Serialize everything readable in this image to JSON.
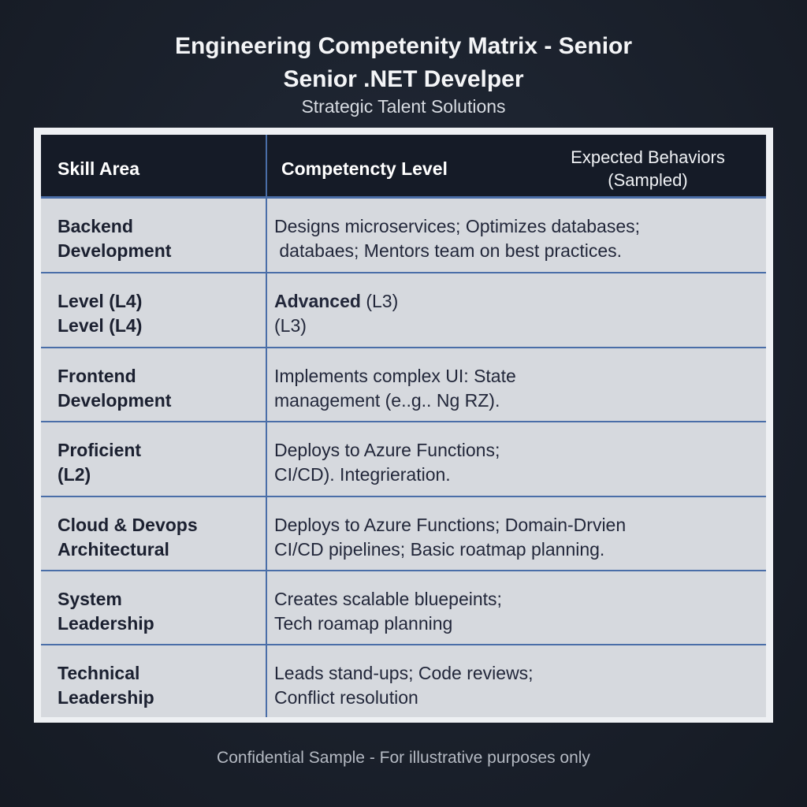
{
  "title_line1": "Engineering Competenity Matrix - Senior",
  "title_line2": "Senior .NET Develper",
  "subtitle": "Strategic Talent Solutions",
  "table": {
    "headers": [
      "Skill Area",
      "Competencty Level",
      "Expected Behaviors",
      "(Sampled)"
    ],
    "rows": [
      {
        "skill": [
          "Backend",
          "Development"
        ],
        "bold": "",
        "text": [
          "Designs microservices; Optimizes databases;",
          " databaes; Mentors team on best practices."
        ]
      },
      {
        "skill": [
          "Level (L4)",
          "Level (L4)"
        ],
        "bold": "Advanced",
        "text": [
          " (L3)",
          "(L3)"
        ]
      },
      {
        "skill": [
          "Frontend",
          "Development"
        ],
        "bold": "",
        "text": [
          "Implements complex UI: State",
          "management (e..g.. Ng RZ)."
        ]
      },
      {
        "skill": [
          "Proficient",
          "(L2)"
        ],
        "bold": "",
        "text": [
          "Deploys to Azure Functions;",
          "CI/CD). Integrieration."
        ]
      },
      {
        "skill": [
          "Cloud & Devops",
          "Architectural"
        ],
        "bold": "",
        "text": [
          "Deploys to Azure Functions; Domain-Drvien",
          "CI/CD pipelines; Basic roatmap planning."
        ]
      },
      {
        "skill": [
          "System",
          "Leadership"
        ],
        "bold": "",
        "text": [
          "Creates scalable bluepeints;",
          "Tech roamap planning"
        ]
      },
      {
        "skill": [
          "Technical",
          "Leadership"
        ],
        "bold": "",
        "text": [
          "Leads stand-ups; Code reviews;",
          "Conflict resolution"
        ]
      }
    ]
  },
  "footer": "Confidential Sample - For illustrative purposes only",
  "colors": {
    "background": "#1b2230",
    "header": "#151b27",
    "row": "#d6d9de",
    "rule": "#4a6ea8"
  }
}
